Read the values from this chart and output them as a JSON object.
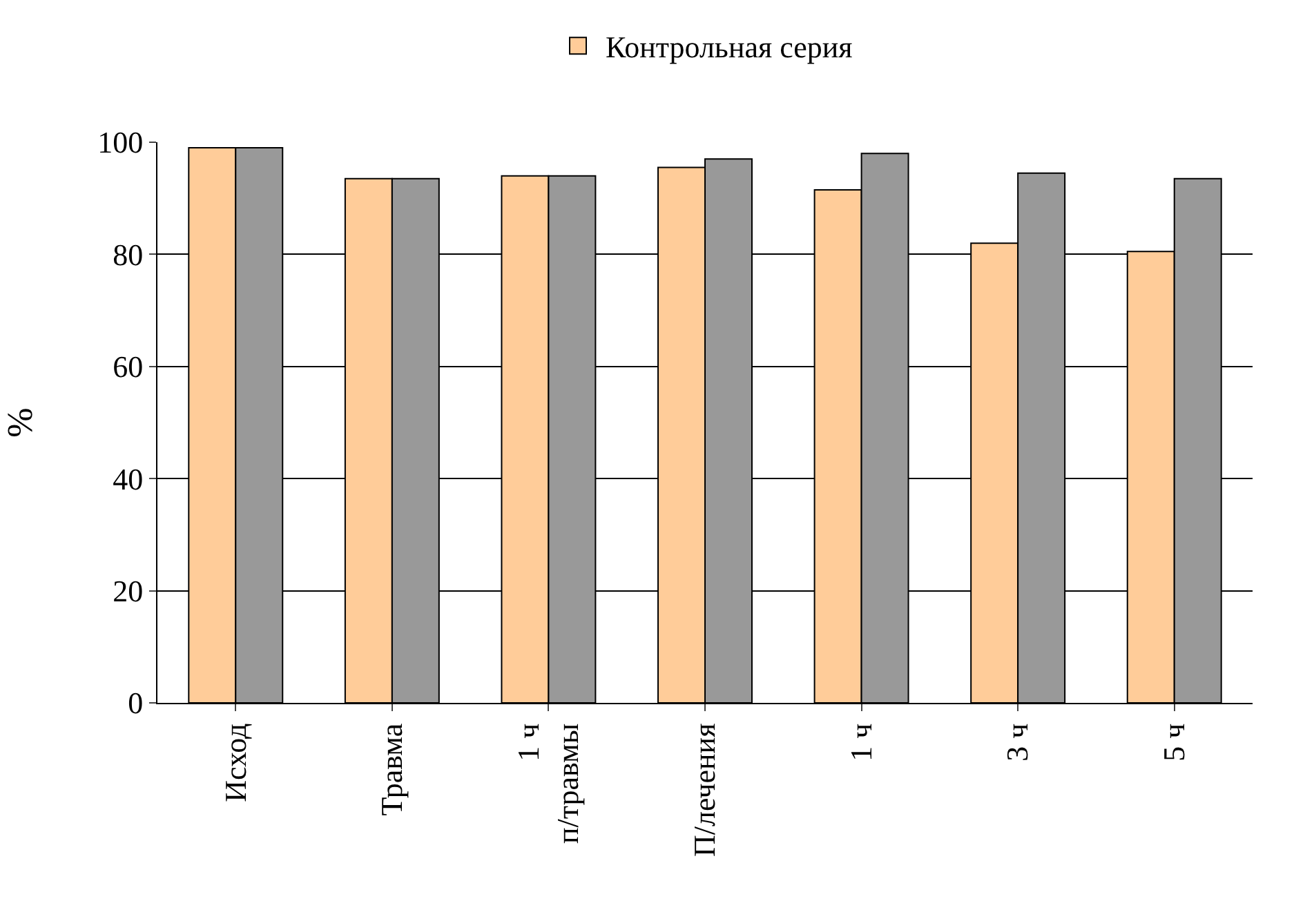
{
  "chart_data": {
    "type": "bar",
    "ylabel": "%",
    "categories": [
      "Исход",
      "Травма",
      "1 ч\nп/травмы",
      "П/лечения",
      "1 ч",
      "3 ч",
      "5 ч"
    ],
    "series": [
      {
        "name": "Контрольная серия",
        "color": "#ffcc99",
        "values": [
          99,
          93.5,
          94,
          95.5,
          91.5,
          82,
          80.5
        ]
      },
      {
        "color": "#999999",
        "values": [
          99,
          93.5,
          94,
          97,
          98,
          94.5,
          93.5
        ]
      }
    ],
    "ylim": [
      0,
      100
    ],
    "yticks": [
      0,
      20,
      40,
      60,
      80,
      100
    ],
    "grid": "y",
    "legend": "top"
  }
}
